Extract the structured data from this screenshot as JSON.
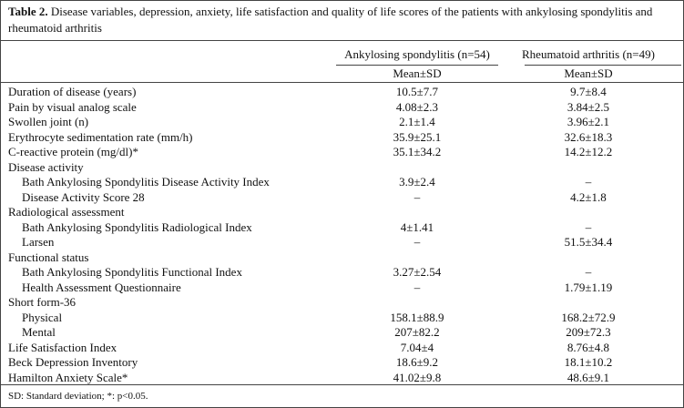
{
  "table": {
    "title": {
      "label": "Table 2.",
      "text": "Disease variables, depression, anxiety, life satisfaction and quality of life scores of the patients with ankylosing spondylitis and rheumatoid arthritis"
    },
    "columns": [
      "Ankylosing spondylitis (n=54)",
      "Rheumatoid arthritis (n=49)"
    ],
    "subheaders": [
      "Mean±SD",
      "Mean±SD"
    ],
    "rows": [
      {
        "label": "Duration of disease (years)",
        "cells": [
          "10.5±7.7",
          "9.7±8.4"
        ]
      },
      {
        "label": "Pain by visual analog scale",
        "cells": [
          "4.08±2.3",
          "3.84±2.5"
        ]
      },
      {
        "label": "Swollen joint (n)",
        "cells": [
          "2.1±1.4",
          "3.96±2.1"
        ]
      },
      {
        "label": "Erythrocyte sedimentation rate (mm/h)",
        "cells": [
          "35.9±25.1",
          "32.6±18.3"
        ]
      },
      {
        "label": "C-reactive protein (mg/dl)*",
        "cells": [
          "35.1±34.2",
          "14.2±12.2"
        ]
      },
      {
        "label": "Disease activity"
      },
      {
        "label": "Bath Ankylosing Spondylitis Disease Activity Index",
        "indent": true,
        "cells": [
          "3.9±2.4",
          "–"
        ]
      },
      {
        "label": "Disease Activity Score 28",
        "indent": true,
        "cells": [
          "–",
          "4.2±1.8"
        ]
      },
      {
        "label": "Radiological assessment"
      },
      {
        "label": "Bath Ankylosing Spondylitis Radiological Index",
        "indent": true,
        "cells": [
          "4±1.41",
          "–"
        ]
      },
      {
        "label": "Larsen",
        "indent": true,
        "cells": [
          "–",
          "51.5±34.4"
        ]
      },
      {
        "label": "Functional status"
      },
      {
        "label": "Bath Ankylosing Spondylitis Functional Index",
        "indent": true,
        "cells": [
          "3.27±2.54",
          "–"
        ]
      },
      {
        "label": "Health Assessment Questionnaire",
        "indent": true,
        "cells": [
          "–",
          "1.79±1.19"
        ]
      },
      {
        "label": "Short form-36"
      },
      {
        "label": "Physical",
        "indent": true,
        "cells": [
          "158.1±88.9",
          "168.2±72.9"
        ]
      },
      {
        "label": "Mental",
        "indent": true,
        "cells": [
          "207±82.2",
          "209±72.3"
        ]
      },
      {
        "label": "Life Satisfaction Index",
        "cells": [
          "7.04±4",
          "8.76±4.8"
        ]
      },
      {
        "label": "Beck Depression Inventory",
        "cells": [
          "18.6±9.2",
          "18.1±10.2"
        ]
      },
      {
        "label": "Hamilton Anxiety Scale*",
        "cells": [
          "41.02±9.8",
          "48.6±9.1"
        ]
      }
    ],
    "footnote": "SD: Standard deviation; *: p<0.05."
  }
}
